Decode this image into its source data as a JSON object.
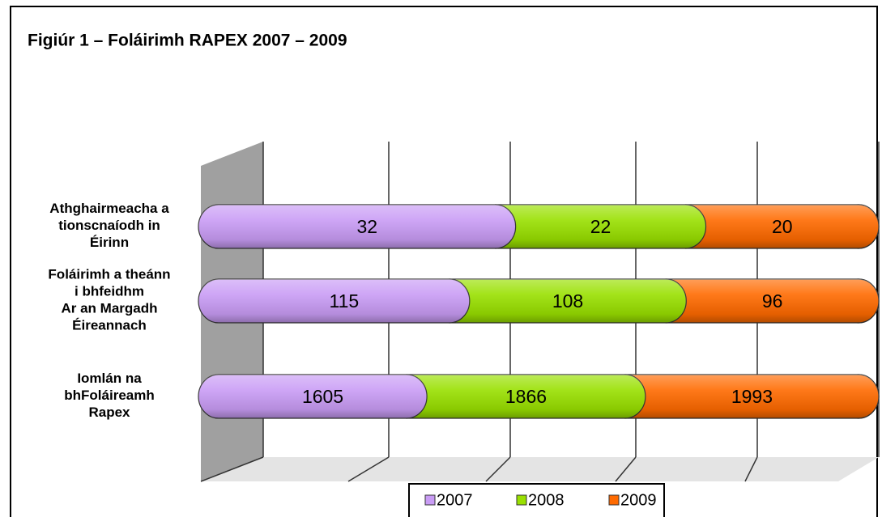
{
  "chart_data": {
    "type": "bar",
    "stacked": "percent",
    "title": "Figiúr 1 – Foláirimh RAPEX 2007 – 2009",
    "categories": [
      "Athghairmeacha a\ntionscnaíodh in\nÉirinn",
      "Foláirimh a theánn\ni bhfeidhm\nAr an Margadh\nÉireannach",
      "Iomlán na\nbhFoláireamh\nRapex"
    ],
    "series": [
      {
        "name": "2007",
        "color": "#c99cf5",
        "values": [
          32,
          115,
          1605
        ]
      },
      {
        "name": "2008",
        "color": "#99e000",
        "values": [
          22,
          108,
          1866
        ]
      },
      {
        "name": "2009",
        "color": "#ff6a00",
        "values": [
          20,
          96,
          1993
        ]
      }
    ],
    "legend": "bottom"
  }
}
